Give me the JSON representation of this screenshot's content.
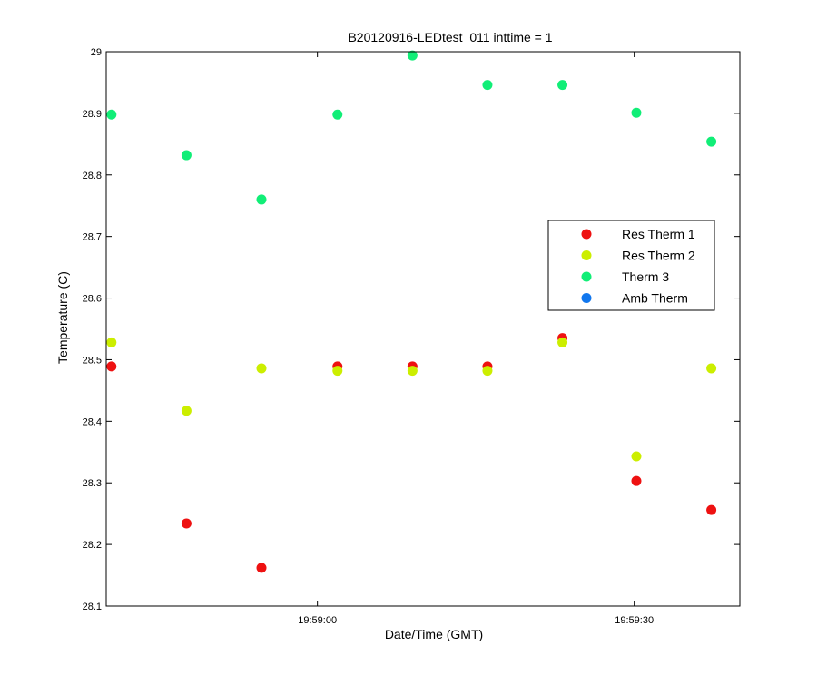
{
  "chart_data": {
    "type": "scatter",
    "title": "B20120916-LEDtest_011 inttime = 1",
    "xlabel": "Date/Time (GMT)",
    "ylabel": "Temperature (C)",
    "xlim": [
      "19:58:40",
      "19:59:40"
    ],
    "ylim": [
      28.1,
      29.0
    ],
    "x_ticks": [
      "19:59:00",
      "19:59:30"
    ],
    "y_ticks": [
      "28.1",
      "28.2",
      "28.3",
      "28.4",
      "28.5",
      "28.6",
      "28.7",
      "28.8",
      "28.9",
      "29"
    ],
    "x": [
      "19:58:40.5",
      "19:58:47.6",
      "19:58:54.7",
      "19:59:01.9",
      "19:59:09.0",
      "19:59:16.1",
      "19:59:23.2",
      "19:59:30.2",
      "19:59:37.3"
    ],
    "grid": false,
    "legend_position": "right",
    "series": [
      {
        "name": "Res Therm 1",
        "color": "#ee1111",
        "values": [
          28.489,
          28.234,
          28.162,
          28.489,
          28.489,
          28.489,
          28.535,
          28.303,
          28.256
        ]
      },
      {
        "name": "Res Therm 2",
        "color": "#ccee00",
        "values": [
          28.528,
          28.417,
          28.486,
          28.482,
          28.482,
          28.482,
          28.528,
          28.343,
          28.486
        ]
      },
      {
        "name": "Therm 3",
        "color": "#11ee77",
        "values": [
          28.898,
          28.832,
          28.76,
          28.898,
          28.994,
          28.946,
          28.946,
          28.901,
          28.854
        ]
      },
      {
        "name": "Amb Therm",
        "color": "#1177ee",
        "values": []
      }
    ]
  }
}
